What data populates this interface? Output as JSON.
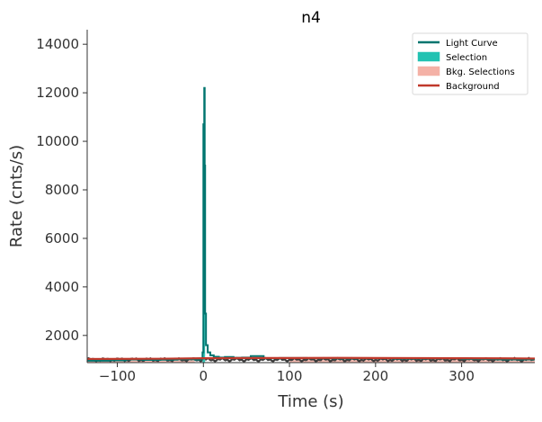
{
  "chart_data": {
    "type": "line",
    "title": "n4",
    "xlabel": "Time (s)",
    "ylabel": "Rate (cnts/s)",
    "xlim": [
      -135,
      385
    ],
    "ylim": [
      880,
      14600
    ],
    "xticks": [
      -100,
      0,
      100,
      200,
      300
    ],
    "xtick_labels": [
      "−100",
      "0",
      "100",
      "200",
      "300"
    ],
    "yticks": [
      2000,
      4000,
      6000,
      8000,
      10000,
      12000,
      14000
    ],
    "ytick_labels": [
      "2000",
      "4000",
      "6000",
      "8000",
      "10000",
      "12000",
      "14000"
    ],
    "grid": false,
    "legend_position": "top-right",
    "legend": [
      {
        "label": "Light Curve",
        "kind": "line",
        "color": "#00756f"
      },
      {
        "label": "Selection",
        "kind": "patch",
        "color": "#22c2b2"
      },
      {
        "label": "Bkg. Selections",
        "kind": "patch",
        "color": "#f4b1a6"
      },
      {
        "label": "Background",
        "kind": "line",
        "color": "#c0392b"
      }
    ],
    "colors": {
      "light_curve": "#00756f",
      "selection": "#22c2b2",
      "bkg_selection": "#f4b1a6",
      "background": "#c0392b",
      "raw_curve": "#3d3d3d"
    },
    "series": [
      {
        "name": "Light Curve",
        "x": [
          -135,
          -110,
          -90,
          -70,
          -50,
          -30,
          -10,
          -3,
          -1,
          0,
          0.5,
          1,
          1.5,
          2,
          3,
          5,
          8,
          12,
          18,
          25,
          35,
          45,
          55,
          70,
          90,
          120,
          150,
          180,
          220,
          260,
          300,
          340,
          385
        ],
        "y": [
          960,
          975,
          1010,
          990,
          1000,
          1020,
          1000,
          1040,
          1300,
          10700,
          7000,
          12200,
          9000,
          2900,
          1600,
          1300,
          1180,
          1120,
          1090,
          1110,
          1080,
          1090,
          1150,
          1060,
          1070,
          1060,
          1050,
          1060,
          1040,
          1050,
          1030,
          1010,
          1000
        ]
      },
      {
        "name": "Background",
        "x": [
          -135,
          -50,
          0,
          50,
          100,
          150,
          200,
          250,
          300,
          350,
          385
        ],
        "y": [
          1030,
          1040,
          1060,
          1070,
          1070,
          1075,
          1070,
          1065,
          1060,
          1055,
          1050
        ]
      }
    ],
    "selection_interval": [
      -1,
      2
    ],
    "bkg_selection_intervals": [
      [
        -135,
        -10
      ],
      [
        100,
        385
      ]
    ]
  }
}
